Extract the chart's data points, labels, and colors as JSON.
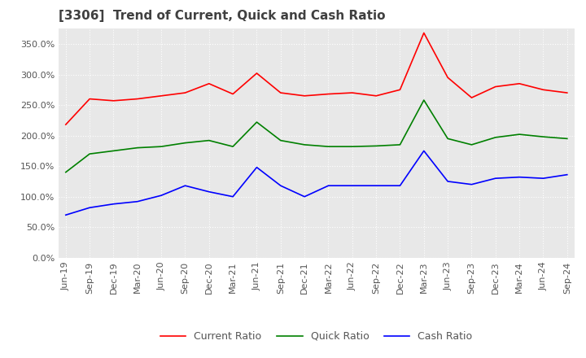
{
  "title": "[3306]  Trend of Current, Quick and Cash Ratio",
  "title_fontsize": 11,
  "title_color": "#404040",
  "background_color": "#ffffff",
  "plot_background": "#e8e8e8",
  "grid_color": "#ffffff",
  "x_labels": [
    "Jun-19",
    "Sep-19",
    "Dec-19",
    "Mar-20",
    "Jun-20",
    "Sep-20",
    "Dec-20",
    "Mar-21",
    "Jun-21",
    "Sep-21",
    "Dec-21",
    "Mar-22",
    "Jun-22",
    "Sep-22",
    "Dec-22",
    "Mar-23",
    "Jun-23",
    "Sep-23",
    "Dec-23",
    "Mar-24",
    "Jun-24",
    "Sep-24"
  ],
  "current_ratio": [
    218.0,
    260.0,
    257.0,
    260.0,
    265.0,
    270.0,
    285.0,
    268.0,
    302.0,
    270.0,
    265.0,
    268.0,
    270.0,
    265.0,
    275.0,
    368.0,
    295.0,
    262.0,
    280.0,
    285.0,
    275.0,
    270.0
  ],
  "quick_ratio": [
    140.0,
    170.0,
    175.0,
    180.0,
    182.0,
    188.0,
    192.0,
    182.0,
    222.0,
    192.0,
    185.0,
    182.0,
    182.0,
    183.0,
    185.0,
    258.0,
    195.0,
    185.0,
    197.0,
    202.0,
    198.0,
    195.0
  ],
  "cash_ratio": [
    70.0,
    82.0,
    88.0,
    92.0,
    102.0,
    118.0,
    108.0,
    100.0,
    148.0,
    118.0,
    100.0,
    118.0,
    118.0,
    118.0,
    118.0,
    175.0,
    125.0,
    120.0,
    130.0,
    132.0,
    130.0,
    136.0
  ],
  "current_color": "#ff0000",
  "quick_color": "#008000",
  "cash_color": "#0000ff",
  "ylim": [
    0,
    375
  ],
  "yticks": [
    0,
    50,
    100,
    150,
    200,
    250,
    300,
    350
  ],
  "legend_fontsize": 9,
  "tick_fontsize": 8,
  "tick_color": "#555555"
}
